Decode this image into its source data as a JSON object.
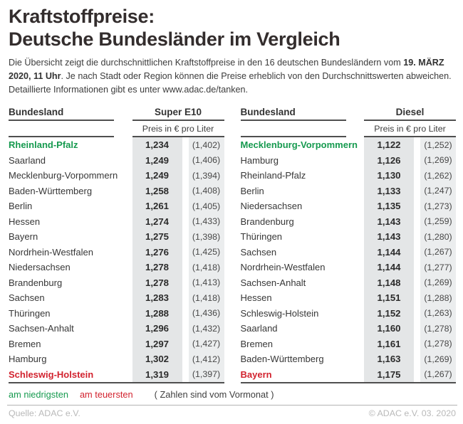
{
  "title": {
    "line1": "Kraftstoffpreise:",
    "line2": "Deutsche Bundesländer im Vergleich"
  },
  "intro": {
    "segments": [
      {
        "text": "Die Übersicht zeigt die durchschnittlichen Kraftstoffpreise in den 16 deutschen Bundesländern vom ",
        "bold": false
      },
      {
        "text": "19. MÄRZ 2020, 11 Uhr",
        "bold": true
      },
      {
        "text": ". Je nach Stadt oder Region können die Preise erheblich von den Durchschnittswerten abweichen. Detaillierte Informationen gibt es unter www.adac.de/tanken.",
        "bold": false
      }
    ]
  },
  "colors": {
    "green": "#169a4f",
    "red": "#d2232f",
    "rule": "#4f4f4f",
    "price_bg": "#e4e6e7",
    "prev_bg": "#ebedee",
    "muted": "#b9b9b9",
    "heading": "#332d2d",
    "body_text": "#3c3c3c"
  },
  "chart_data": [
    {
      "type": "table",
      "title": "Super E10",
      "name_header": "Bundesland",
      "unit_header": "Preis in € pro Liter",
      "rows": [
        {
          "state": "Rheinland-Pfalz",
          "price": "1,234",
          "previous": "(1,402)",
          "status": "lowest"
        },
        {
          "state": "Saarland",
          "price": "1,249",
          "previous": "(1,406)",
          "status": ""
        },
        {
          "state": "Mecklenburg-Vorpommern",
          "price": "1,249",
          "previous": "(1,394)",
          "status": ""
        },
        {
          "state": "Baden-Württemberg",
          "price": "1,258",
          "previous": "(1,408)",
          "status": ""
        },
        {
          "state": "Berlin",
          "price": "1,261",
          "previous": "(1,405)",
          "status": ""
        },
        {
          "state": "Hessen",
          "price": "1,274",
          "previous": "(1,433)",
          "status": ""
        },
        {
          "state": "Bayern",
          "price": "1,275",
          "previous": "(1,398)",
          "status": ""
        },
        {
          "state": "Nordrhein-Westfalen",
          "price": "1,276",
          "previous": "(1,425)",
          "status": ""
        },
        {
          "state": "Niedersachsen",
          "price": "1,278",
          "previous": "(1,418)",
          "status": ""
        },
        {
          "state": "Brandenburg",
          "price": "1,278",
          "previous": "(1,413)",
          "status": ""
        },
        {
          "state": "Sachsen",
          "price": "1,283",
          "previous": "(1,418)",
          "status": ""
        },
        {
          "state": "Thüringen",
          "price": "1,288",
          "previous": "(1,436)",
          "status": ""
        },
        {
          "state": "Sachsen-Anhalt",
          "price": "1,296",
          "previous": "(1,432)",
          "status": ""
        },
        {
          "state": "Bremen",
          "price": "1,297",
          "previous": "(1,427)",
          "status": ""
        },
        {
          "state": "Hamburg",
          "price": "1,302",
          "previous": "(1,412)",
          "status": ""
        },
        {
          "state": "Schleswig-Holstein",
          "price": "1,319",
          "previous": "(1,397)",
          "status": "highest"
        }
      ]
    },
    {
      "type": "table",
      "title": "Diesel",
      "name_header": "Bundesland",
      "unit_header": "Preis in € pro Liter",
      "rows": [
        {
          "state": "Mecklenburg-Vorpommern",
          "price": "1,122",
          "previous": "(1,252)",
          "status": "lowest"
        },
        {
          "state": "Hamburg",
          "price": "1,126",
          "previous": "(1,269)",
          "status": ""
        },
        {
          "state": "Rheinland-Pfalz",
          "price": "1,130",
          "previous": "(1,262)",
          "status": ""
        },
        {
          "state": "Berlin",
          "price": "1,133",
          "previous": "(1,247)",
          "status": ""
        },
        {
          "state": "Niedersachsen",
          "price": "1,135",
          "previous": "(1,273)",
          "status": ""
        },
        {
          "state": "Brandenburg",
          "price": "1,143",
          "previous": "(1,259)",
          "status": ""
        },
        {
          "state": "Thüringen",
          "price": "1,143",
          "previous": "(1,280)",
          "status": ""
        },
        {
          "state": "Sachsen",
          "price": "1,144",
          "previous": "(1,267)",
          "status": ""
        },
        {
          "state": "Nordrhein-Westfalen",
          "price": "1,144",
          "previous": "(1,277)",
          "status": ""
        },
        {
          "state": "Sachsen-Anhalt",
          "price": "1,148",
          "previous": "(1,269)",
          "status": ""
        },
        {
          "state": "Hessen",
          "price": "1,151",
          "previous": "(1,288)",
          "status": ""
        },
        {
          "state": "Schleswig-Holstein",
          "price": "1,152",
          "previous": "(1,263)",
          "status": ""
        },
        {
          "state": "Saarland",
          "price": "1,160",
          "previous": "(1,278)",
          "status": ""
        },
        {
          "state": "Bremen",
          "price": "1,161",
          "previous": "(1,278)",
          "status": ""
        },
        {
          "state": "Baden-Württemberg",
          "price": "1,163",
          "previous": "(1,269)",
          "status": ""
        },
        {
          "state": "Bayern",
          "price": "1,175",
          "previous": "(1,267)",
          "status": "highest"
        }
      ]
    }
  ],
  "legend": {
    "lowest_label": "am niedrigsten",
    "highest_label": "am teuersten",
    "note": "( Zahlen sind vom Vormonat )"
  },
  "footer": {
    "source": "Quelle: ADAC e.V.",
    "copyright": "© ADAC e.V. 03. 2020"
  }
}
